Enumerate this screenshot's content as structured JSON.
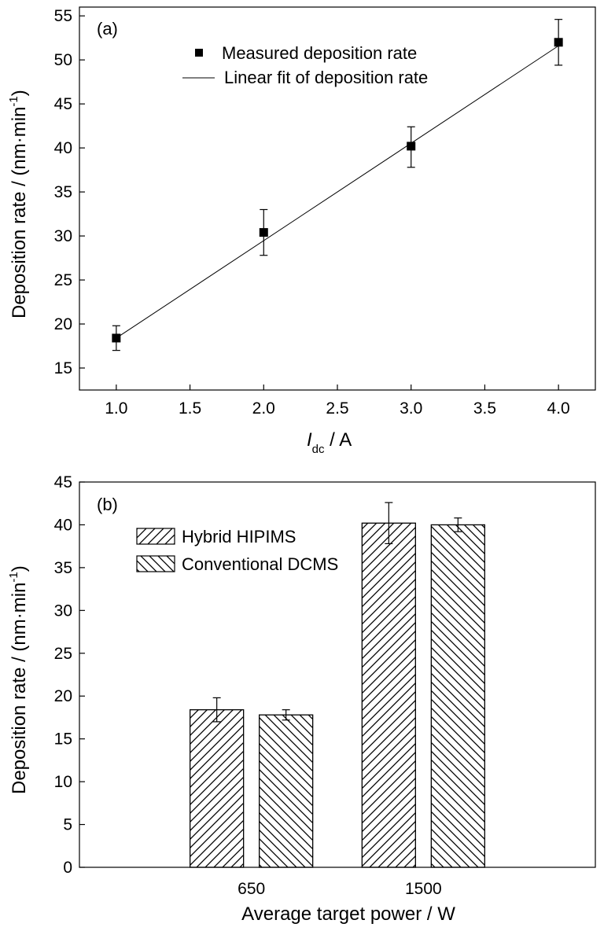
{
  "chart_data": [
    {
      "type": "scatter",
      "panel_label": "(a)",
      "xlabel_main": "I",
      "xlabel_sub": "dc",
      "xlabel_rest": " / A",
      "ylabel": "Deposition rate / (nm·min",
      "ylabel_sup": "-1",
      "ylabel_close": ")",
      "xlim": [
        0.75,
        4.25
      ],
      "ylim": [
        12.5,
        56
      ],
      "xticks": [
        1.0,
        1.5,
        2.0,
        2.5,
        3.0,
        3.5,
        4.0
      ],
      "xtick_labels": [
        "1.0",
        "1.5",
        "2.0",
        "2.5",
        "3.0",
        "3.5",
        "4.0"
      ],
      "yticks": [
        15,
        20,
        25,
        30,
        35,
        40,
        45,
        50,
        55
      ],
      "ytick_labels": [
        "15",
        "20",
        "25",
        "30",
        "35",
        "40",
        "45",
        "50",
        "55"
      ],
      "series": [
        {
          "name": "Measured deposition rate",
          "x": [
            1.0,
            2.0,
            3.0,
            4.0
          ],
          "y": [
            18.4,
            30.4,
            40.2,
            52.0
          ],
          "err_low": [
            1.4,
            2.6,
            2.4,
            2.6
          ],
          "err_high": [
            1.4,
            2.6,
            2.2,
            2.6
          ]
        },
        {
          "name": "Linear fit of deposition rate",
          "x": [
            1.0,
            4.0
          ],
          "y": [
            18.4,
            51.6
          ]
        }
      ],
      "grid": false,
      "legend_position": "top-right"
    },
    {
      "type": "bar",
      "panel_label": "(b)",
      "xlabel": "Average target power / W",
      "ylabel": "Deposition rate / (nm·min",
      "ylabel_sup": "-1",
      "ylabel_close": ")",
      "categories": [
        "650",
        "1500"
      ],
      "ylim": [
        0,
        45
      ],
      "yticks": [
        0,
        5,
        10,
        15,
        20,
        25,
        30,
        35,
        40,
        45
      ],
      "ytick_labels": [
        "0",
        "5",
        "10",
        "15",
        "20",
        "25",
        "30",
        "35",
        "40",
        "45"
      ],
      "series": [
        {
          "name": "Hybrid HIPIMS",
          "pattern": "forward-hatch",
          "values": [
            18.4,
            40.2
          ],
          "err": [
            1.4,
            2.4
          ]
        },
        {
          "name": "Conventional DCMS",
          "pattern": "backward-hatch",
          "values": [
            17.8,
            40.0
          ],
          "err": [
            0.6,
            0.8
          ]
        }
      ],
      "grid": false,
      "legend_position": "top-left"
    }
  ]
}
